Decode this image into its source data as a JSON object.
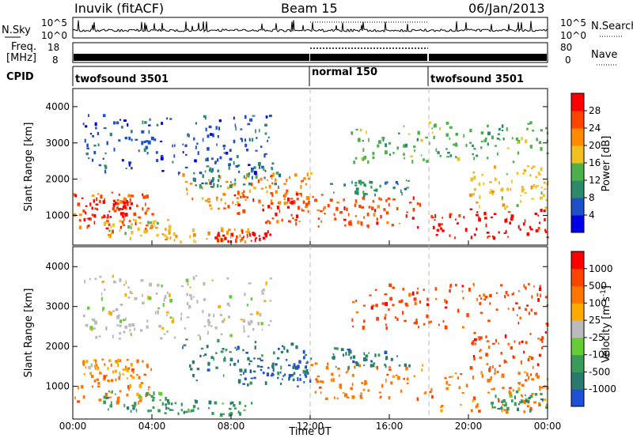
{
  "header": {
    "station": "Inuvik (fitACF)",
    "beam": "Beam 15",
    "date": "06/Jan/2013"
  },
  "strip_labels": {
    "nsky": "N.Sky",
    "nsearch": "N.Search",
    "freq_line1": "Freq.",
    "freq_line2": "[MHz]",
    "nave": "Nave",
    "cpid": "CPID",
    "left_tick_top": "10^5",
    "left_tick_bottom": "10^0",
    "right_tick_top": "10^5",
    "right_tick_bottom": "10^0",
    "freq_ticks": [
      "18",
      "8"
    ],
    "nave_ticks": [
      "80",
      "0"
    ]
  },
  "cpid_segments": [
    {
      "label": "twofsound 3501",
      "start_hour": 0,
      "end_hour": 12
    },
    {
      "label": "normal 150",
      "start_hour": 12,
      "end_hour": 18
    },
    {
      "label": "twofsound 3501",
      "start_hour": 18,
      "end_hour": 24
    }
  ],
  "chart_data": [
    {
      "type": "heatmap",
      "quantity": "power",
      "ylabel": "Slant Range [km]",
      "xlim": [
        0,
        24
      ],
      "ylim": [
        180,
        4500
      ],
      "yticks": [
        "1000",
        "2000",
        "3000",
        "4000"
      ],
      "colorbar": {
        "label": "Power [dB]",
        "tick_labels": [
          "4",
          "8",
          "12",
          "16",
          "20",
          "24",
          "28"
        ],
        "colors": [
          "#0000e6",
          "#1e50c8",
          "#2a8a6a",
          "#4db04a",
          "#f0c020",
          "#ff8c00",
          "#ff4400",
          "#ff0000"
        ]
      },
      "regions": [
        {
          "x": [
            0.0,
            4.0
          ],
          "y": [
            600,
            1700
          ],
          "level": 6
        },
        {
          "x": [
            0.4,
            3.0
          ],
          "y": [
            900,
            1500
          ],
          "level": 7
        },
        {
          "x": [
            1.5,
            5.0
          ],
          "y": [
            400,
            900
          ],
          "level": 4
        },
        {
          "x": [
            4.5,
            9.0
          ],
          "y": [
            300,
            700
          ],
          "level": 5
        },
        {
          "x": [
            7.0,
            10.0
          ],
          "y": [
            300,
            600
          ],
          "level": 7
        },
        {
          "x": [
            5.5,
            12.0
          ],
          "y": [
            1200,
            2200
          ],
          "level": 5
        },
        {
          "x": [
            8.0,
            12.0
          ],
          "y": [
            800,
            1700
          ],
          "level": 6
        },
        {
          "x": [
            6.0,
            10.5
          ],
          "y": [
            1800,
            2500
          ],
          "level": 2
        },
        {
          "x": [
            12.0,
            17.8
          ],
          "y": [
            700,
            1600
          ],
          "level": 6
        },
        {
          "x": [
            13.0,
            17.0
          ],
          "y": [
            1600,
            2000
          ],
          "level": 2
        },
        {
          "x": [
            18.0,
            24.0
          ],
          "y": [
            400,
            1200
          ],
          "level": 7
        },
        {
          "x": [
            20.0,
            24.0
          ],
          "y": [
            1200,
            2400
          ],
          "level": 4
        },
        {
          "x": [
            0.5,
            10.0
          ],
          "y": [
            2200,
            3800
          ],
          "level": 1
        },
        {
          "x": [
            14.0,
            24.0
          ],
          "y": [
            2500,
            3600
          ],
          "level": 3
        }
      ]
    },
    {
      "type": "heatmap",
      "quantity": "velocity",
      "ylabel": "Slant Range [km]",
      "xlabel": "Time UT",
      "xlim": [
        0,
        24
      ],
      "ylim": [
        180,
        4500
      ],
      "xticks": [
        "00:00",
        "04:00",
        "08:00",
        "12:00",
        "16:00",
        "20:00",
        "00:00"
      ],
      "yticks": [
        "1000",
        "2000",
        "3000",
        "4000"
      ],
      "colorbar": {
        "label": "Velocity [m s",
        "unit_exponent": "-1",
        "unit_close": "]",
        "tick_labels": [
          "1000",
          "500",
          "100",
          "25",
          "-25",
          "-100",
          "-500",
          "-1000"
        ],
        "colors": [
          "#1e4fd8",
          "#2a7a70",
          "#3a9a5a",
          "#66cc33",
          "#bbbbbb",
          "#ffaa00",
          "#ff7700",
          "#ff4400",
          "#ff0000"
        ]
      },
      "regions": [
        {
          "x": [
            0.0,
            4.0
          ],
          "y": [
            600,
            1700
          ],
          "level": 6
        },
        {
          "x": [
            0.5,
            3.0
          ],
          "y": [
            1200,
            1700
          ],
          "level": 5
        },
        {
          "x": [
            1.5,
            5.0
          ],
          "y": [
            400,
            900
          ],
          "level": 2
        },
        {
          "x": [
            4.5,
            9.0
          ],
          "y": [
            300,
            700
          ],
          "level": 2
        },
        {
          "x": [
            5.5,
            12.0
          ],
          "y": [
            1100,
            2200
          ],
          "level": 1
        },
        {
          "x": [
            8.5,
            12.0
          ],
          "y": [
            1000,
            1700
          ],
          "level": 0
        },
        {
          "x": [
            12.0,
            17.8
          ],
          "y": [
            700,
            1600
          ],
          "level": 6
        },
        {
          "x": [
            13.0,
            17.0
          ],
          "y": [
            1500,
            2000
          ],
          "level": 1
        },
        {
          "x": [
            18.0,
            24.0
          ],
          "y": [
            400,
            1400
          ],
          "level": 6
        },
        {
          "x": [
            21.0,
            24.0
          ],
          "y": [
            400,
            900
          ],
          "level": 2
        },
        {
          "x": [
            20.0,
            24.0
          ],
          "y": [
            1300,
            2400
          ],
          "level": 7
        },
        {
          "x": [
            0.5,
            10.0
          ],
          "y": [
            2200,
            3800
          ],
          "level": 4
        },
        {
          "x": [
            14.0,
            24.0
          ],
          "y": [
            2500,
            3600
          ],
          "level": 7
        }
      ]
    }
  ]
}
